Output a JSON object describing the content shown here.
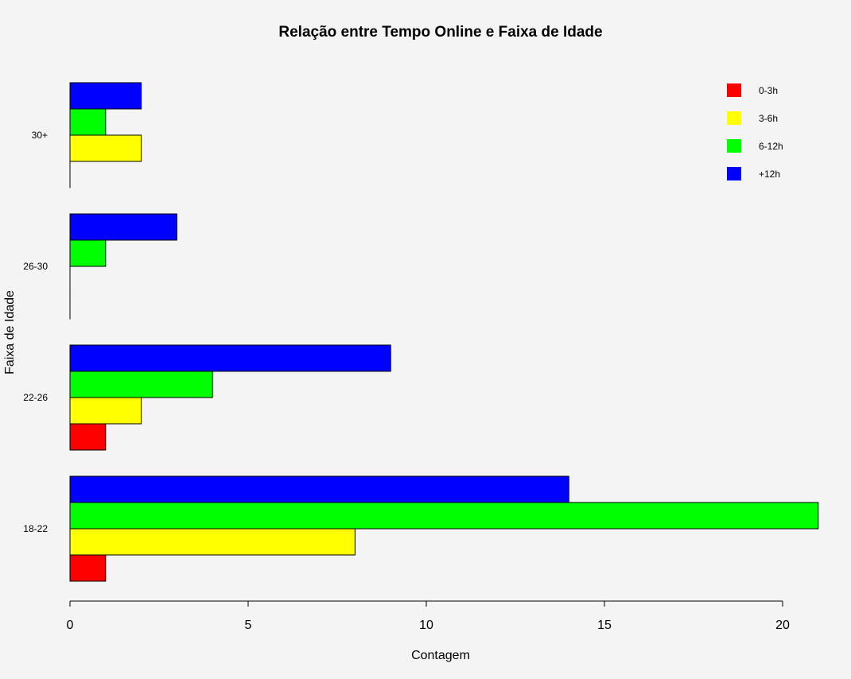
{
  "chart_data": {
    "type": "bar",
    "orientation": "horizontal",
    "grouping": "grouped",
    "title": "Relação entre Tempo Online e Faixa de Idade",
    "xlabel": "Contagem",
    "ylabel": "Faixa de Idade",
    "categories": [
      "18-22",
      "22-26",
      "26-30",
      "30+"
    ],
    "series": [
      {
        "name": "0-3h",
        "color": "#ff0000",
        "values": [
          1,
          1,
          0,
          0
        ]
      },
      {
        "name": "3-6h",
        "color": "#ffff00",
        "values": [
          8,
          2,
          0,
          2
        ]
      },
      {
        "name": "6-12h",
        "color": "#00ff00",
        "values": [
          21,
          4,
          1,
          1
        ]
      },
      {
        "name": "+12h",
        "color": "#0000ff",
        "values": [
          14,
          9,
          3,
          2
        ]
      }
    ],
    "xlim": [
      0,
      21
    ],
    "xticks": [
      0,
      5,
      10,
      15,
      20
    ],
    "grid": false,
    "legend_position": "top-right",
    "background": "#f4f4f4"
  }
}
